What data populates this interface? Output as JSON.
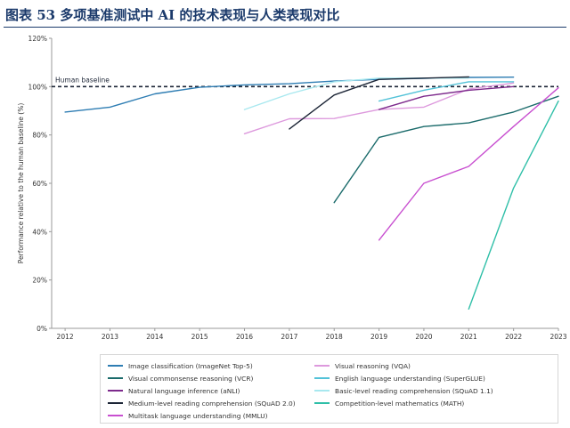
{
  "figure_title": "图表 53  多项基准测试中 AI 的技术表现与人类表现对比",
  "chart_data": {
    "type": "line",
    "ylabel": "Performance relative to the human baseline (%)",
    "xlabel": "",
    "x_ticks": [
      "2012",
      "2013",
      "2014",
      "2015",
      "2016",
      "2017",
      "2018",
      "2019",
      "2020",
      "2021",
      "2022",
      "2023"
    ],
    "y_ticks": [
      "0%",
      "20%",
      "40%",
      "60%",
      "80%",
      "100%",
      "120%"
    ],
    "ylim": [
      0,
      120
    ],
    "xlim": [
      2011.7,
      2023
    ],
    "grid": false,
    "baseline": {
      "value": 100,
      "label": "Human baseline"
    },
    "legend_position": "bottom",
    "series": [
      {
        "name": "Image classification (ImageNet Top-5)",
        "color": "#2e7db3",
        "points": [
          [
            2012,
            89.5
          ],
          [
            2013,
            91.5
          ],
          [
            2014,
            97
          ],
          [
            2015,
            99.7
          ],
          [
            2016,
            100.7
          ],
          [
            2017,
            101.2
          ],
          [
            2018,
            102.3
          ],
          [
            2019,
            103
          ],
          [
            2020,
            103.4
          ],
          [
            2021,
            103.8
          ],
          [
            2022,
            103.9
          ]
        ]
      },
      {
        "name": "Visual reasoning (VQA)",
        "color": "#dd99dd",
        "points": [
          [
            2016,
            80.5
          ],
          [
            2017,
            86.7
          ],
          [
            2018,
            86.8
          ],
          [
            2019,
            90.5
          ],
          [
            2020,
            91.5
          ],
          [
            2021,
            99
          ],
          [
            2022,
            101.5
          ]
        ]
      },
      {
        "name": "Visual commonsense reasoning (VCR)",
        "color": "#1b6b6b",
        "points": [
          [
            2018,
            52
          ],
          [
            2019,
            79
          ],
          [
            2020,
            83.5
          ],
          [
            2021,
            85
          ],
          [
            2022,
            89.5
          ],
          [
            2023,
            96
          ]
        ]
      },
      {
        "name": "English language understanding (SuperGLUE)",
        "color": "#52c2d8",
        "points": [
          [
            2019,
            94
          ],
          [
            2020,
            98.5
          ],
          [
            2021,
            102
          ],
          [
            2022,
            102
          ]
        ]
      },
      {
        "name": "Natural language inference (aNLI)",
        "color": "#7d2a8c",
        "points": [
          [
            2019,
            90.5
          ],
          [
            2020,
            96
          ],
          [
            2021,
            98.5
          ],
          [
            2022,
            100
          ]
        ]
      },
      {
        "name": "Basic-level reading comprehension (SQuAD 1.1)",
        "color": "#a8e8ef",
        "points": [
          [
            2016,
            90.5
          ],
          [
            2017,
            97
          ],
          [
            2018,
            102
          ],
          [
            2019,
            103.5
          ],
          [
            2020,
            103.5
          ],
          [
            2021,
            103.5
          ]
        ]
      },
      {
        "name": "Medium-level reading comprehension (SQuAD 2.0)",
        "color": "#1c2536",
        "points": [
          [
            2017,
            82.5
          ],
          [
            2018,
            96.5
          ],
          [
            2019,
            103
          ],
          [
            2020,
            103.5
          ],
          [
            2021,
            104
          ]
        ]
      },
      {
        "name": "Competition-level mathematics (MATH)",
        "color": "#2fbfa8",
        "points": [
          [
            2021,
            8
          ],
          [
            2022,
            58
          ],
          [
            2023,
            94
          ]
        ]
      },
      {
        "name": "Multitask language understanding (MMLU)",
        "color": "#c84fd0",
        "points": [
          [
            2019,
            36.5
          ],
          [
            2020,
            60
          ],
          [
            2021,
            67
          ],
          [
            2022,
            83.5
          ],
          [
            2023,
            99.5
          ]
        ]
      }
    ]
  },
  "legend": {
    "items": [
      "Image classification (ImageNet Top-5)",
      "Visual reasoning (VQA)",
      "Visual commonsense reasoning (VCR)",
      "English language understanding (SuperGLUE)",
      "Natural language inference (aNLI)",
      "Basic-level reading comprehension (SQuAD 1.1)",
      "Medium-level reading comprehension (SQuAD 2.0)",
      "Competition-level mathematics (MATH)",
      "Multitask language understanding (MMLU)"
    ],
    "colors": [
      "#2e7db3",
      "#dd99dd",
      "#1b6b6b",
      "#52c2d8",
      "#7d2a8c",
      "#a8e8ef",
      "#1c2536",
      "#2fbfa8",
      "#c84fd0"
    ]
  }
}
